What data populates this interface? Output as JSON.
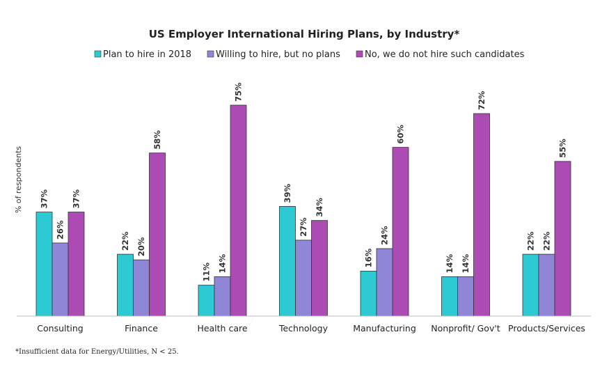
{
  "chart_data": {
    "type": "bar",
    "title": "US Employer International Hiring Plans, by Industry*",
    "ylabel": "% of respondents",
    "xlabel": "",
    "ylim": [
      0,
      80
    ],
    "grid": false,
    "legend_position": "top",
    "categories": [
      "Consulting",
      "Finance",
      "Health care",
      "Technology",
      "Manufacturing",
      "Nonprofit/ Gov't",
      "Products/Services"
    ],
    "series": [
      {
        "name": "Plan to hire in 2018",
        "color": "#2ecad3",
        "values": [
          37,
          22,
          11,
          39,
          16,
          14,
          22
        ],
        "labels": [
          "37%",
          "22%",
          "11%",
          "39%",
          "16%",
          "14%",
          "22%"
        ]
      },
      {
        "name": "Willing to hire, but no plans",
        "color": "#8f86d8",
        "values": [
          26,
          20,
          14,
          27,
          24,
          14,
          22
        ],
        "labels": [
          "26%",
          "20%",
          "14%",
          "27%",
          "24%",
          "14%",
          "22%"
        ]
      },
      {
        "name": "No, we do not hire such candidates",
        "color": "#ad4bb4",
        "values": [
          37,
          58,
          75,
          34,
          60,
          72,
          55
        ],
        "labels": [
          "37%",
          "58%",
          "75%",
          "34%",
          "60%",
          "72%",
          "55%"
        ]
      }
    ]
  },
  "footnote": "*Insufficient data for Energy/Utilities, N < 25."
}
